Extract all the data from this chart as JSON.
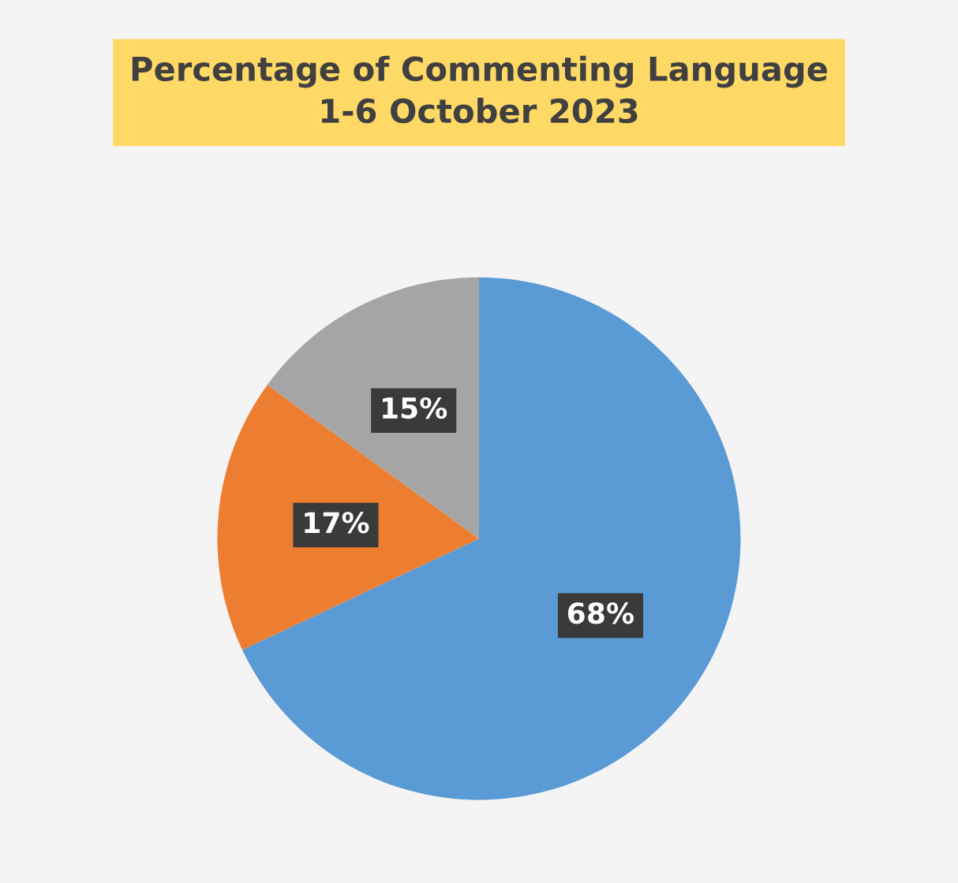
{
  "chart_data": {
    "type": "pie",
    "title": "Percentage of Commenting Language\n1-6 October 2023",
    "categories": [
      null,
      null,
      null
    ],
    "values": [
      68,
      17,
      15
    ],
    "colors": [
      "#5b9bd5",
      "#ed7d31",
      "#a5a5a5"
    ],
    "value_labels": [
      "68%",
      "17%",
      "15%"
    ],
    "legend": false
  }
}
